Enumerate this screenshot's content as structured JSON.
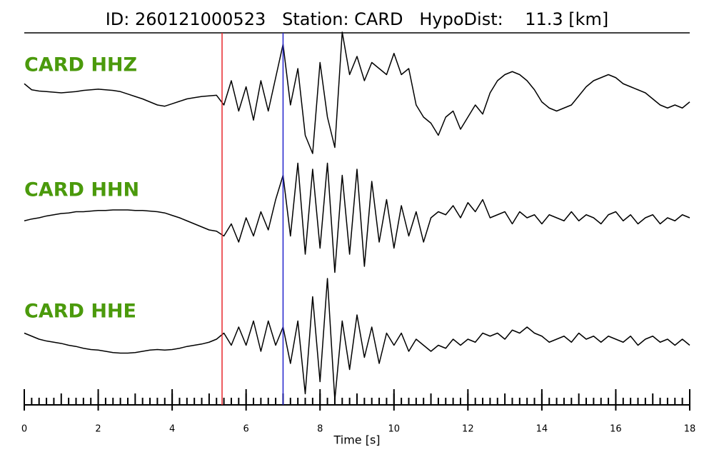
{
  "chart_data": {
    "type": "line",
    "title": "ID: 260121000523   Station: CARD   HypoDist:    11.3 [km]",
    "xlabel": "Time [s]",
    "xlim": [
      0,
      18
    ],
    "xticks": [
      0,
      2,
      4,
      6,
      8,
      10,
      12,
      14,
      16,
      18
    ],
    "minor_xtick_step": 0.2,
    "mid_xtick_step": 1,
    "ylim": [
      -1,
      1
    ],
    "label_color": "#4b9a0c",
    "vlines": [
      {
        "x": 5.35,
        "color": "#e8262b"
      },
      {
        "x": 7.0,
        "color": "#2222cc"
      }
    ],
    "x": [
      0,
      0.2,
      0.4,
      0.6,
      0.8,
      1,
      1.2,
      1.4,
      1.6,
      1.8,
      2,
      2.2,
      2.4,
      2.6,
      2.8,
      3,
      3.2,
      3.4,
      3.6,
      3.8,
      4,
      4.2,
      4.4,
      4.6,
      4.8,
      5,
      5.2,
      5.4,
      5.6,
      5.8,
      6,
      6.2,
      6.4,
      6.6,
      6.8,
      7,
      7.2,
      7.4,
      7.6,
      7.8,
      8,
      8.2,
      8.4,
      8.6,
      8.8,
      9,
      9.2,
      9.4,
      9.6,
      9.8,
      10,
      10.2,
      10.4,
      10.6,
      10.8,
      11,
      11.2,
      11.4,
      11.6,
      11.8,
      12,
      12.2,
      12.4,
      12.6,
      12.8,
      13,
      13.2,
      13.4,
      13.6,
      13.8,
      14,
      14.2,
      14.4,
      14.6,
      14.8,
      15,
      15.2,
      15.4,
      15.6,
      15.8,
      16,
      16.2,
      16.4,
      16.6,
      16.8,
      17,
      17.2,
      17.4,
      17.6,
      17.8,
      18
    ],
    "series": [
      {
        "name": "CARD HHZ",
        "color": "#000000",
        "values": [
          0.15,
          0.05,
          0.03,
          0.02,
          0.01,
          0,
          0.01,
          0.02,
          0.04,
          0.05,
          0.06,
          0.05,
          0.04,
          0.02,
          -0.02,
          -0.06,
          -0.1,
          -0.15,
          -0.2,
          -0.22,
          -0.18,
          -0.14,
          -0.1,
          -0.08,
          -0.06,
          -0.05,
          -0.04,
          -0.2,
          0.2,
          -0.3,
          0.1,
          -0.45,
          0.2,
          -0.3,
          0.25,
          0.8,
          -0.2,
          0.4,
          -0.7,
          -1.0,
          0.5,
          -0.4,
          -0.9,
          1.0,
          0.3,
          0.6,
          0.2,
          0.5,
          0.4,
          0.3,
          0.65,
          0.3,
          0.4,
          -0.2,
          -0.4,
          -0.5,
          -0.7,
          -0.4,
          -0.3,
          -0.6,
          -0.4,
          -0.2,
          -0.35,
          0,
          0.2,
          0.3,
          0.35,
          0.3,
          0.2,
          0.05,
          -0.15,
          -0.25,
          -0.3,
          -0.25,
          -0.2,
          -0.05,
          0.1,
          0.2,
          0.25,
          0.3,
          0.25,
          0.15,
          0.1,
          0.05,
          0,
          -0.1,
          -0.2,
          -0.25,
          -0.2,
          -0.25,
          -0.15
        ]
      },
      {
        "name": "CARD HHN",
        "color": "#000000",
        "values": [
          -0.05,
          -0.02,
          0,
          0.03,
          0.05,
          0.07,
          0.08,
          0.1,
          0.1,
          0.11,
          0.12,
          0.12,
          0.13,
          0.13,
          0.13,
          0.12,
          0.12,
          0.11,
          0.1,
          0.08,
          0.04,
          0,
          -0.05,
          -0.1,
          -0.15,
          -0.2,
          -0.22,
          -0.3,
          -0.1,
          -0.4,
          0,
          -0.3,
          0.1,
          -0.2,
          0.3,
          0.7,
          -0.3,
          0.9,
          -0.6,
          0.8,
          -0.5,
          0.9,
          -0.9,
          0.7,
          -0.6,
          0.8,
          -0.8,
          0.6,
          -0.4,
          0.3,
          -0.5,
          0.2,
          -0.3,
          0.1,
          -0.4,
          0,
          0.1,
          0.05,
          0.2,
          0,
          0.25,
          0.1,
          0.3,
          0,
          0.05,
          0.1,
          -0.1,
          0.1,
          0,
          0.05,
          -0.1,
          0.05,
          0,
          -0.05,
          0.1,
          -0.05,
          0.05,
          0,
          -0.1,
          0.05,
          0.1,
          -0.05,
          0.05,
          -0.1,
          0,
          0.05,
          -0.1,
          0,
          -0.05,
          0.05,
          0
        ]
      },
      {
        "name": "CARD HHE",
        "color": "#000000",
        "values": [
          0.1,
          0.05,
          0,
          -0.03,
          -0.05,
          -0.07,
          -0.1,
          -0.12,
          -0.15,
          -0.17,
          -0.18,
          -0.2,
          -0.22,
          -0.23,
          -0.23,
          -0.22,
          -0.2,
          -0.18,
          -0.17,
          -0.18,
          -0.17,
          -0.15,
          -0.12,
          -0.1,
          -0.08,
          -0.05,
          0,
          0.1,
          -0.1,
          0.2,
          -0.1,
          0.3,
          -0.2,
          0.3,
          -0.1,
          0.2,
          -0.4,
          0.3,
          -0.9,
          0.7,
          -0.7,
          1.0,
          -1.0,
          0.3,
          -0.5,
          0.4,
          -0.3,
          0.2,
          -0.4,
          0.1,
          -0.1,
          0.1,
          -0.2,
          0,
          -0.1,
          -0.2,
          -0.1,
          -0.15,
          0,
          -0.1,
          0,
          -0.05,
          0.1,
          0.05,
          0.1,
          0,
          0.15,
          0.1,
          0.2,
          0.1,
          0.05,
          -0.05,
          0,
          0.05,
          -0.05,
          0.1,
          0,
          0.05,
          -0.05,
          0.05,
          0,
          -0.05,
          0.05,
          -0.1,
          0,
          0.05,
          -0.05,
          0,
          -0.1,
          0,
          -0.1
        ]
      }
    ]
  }
}
